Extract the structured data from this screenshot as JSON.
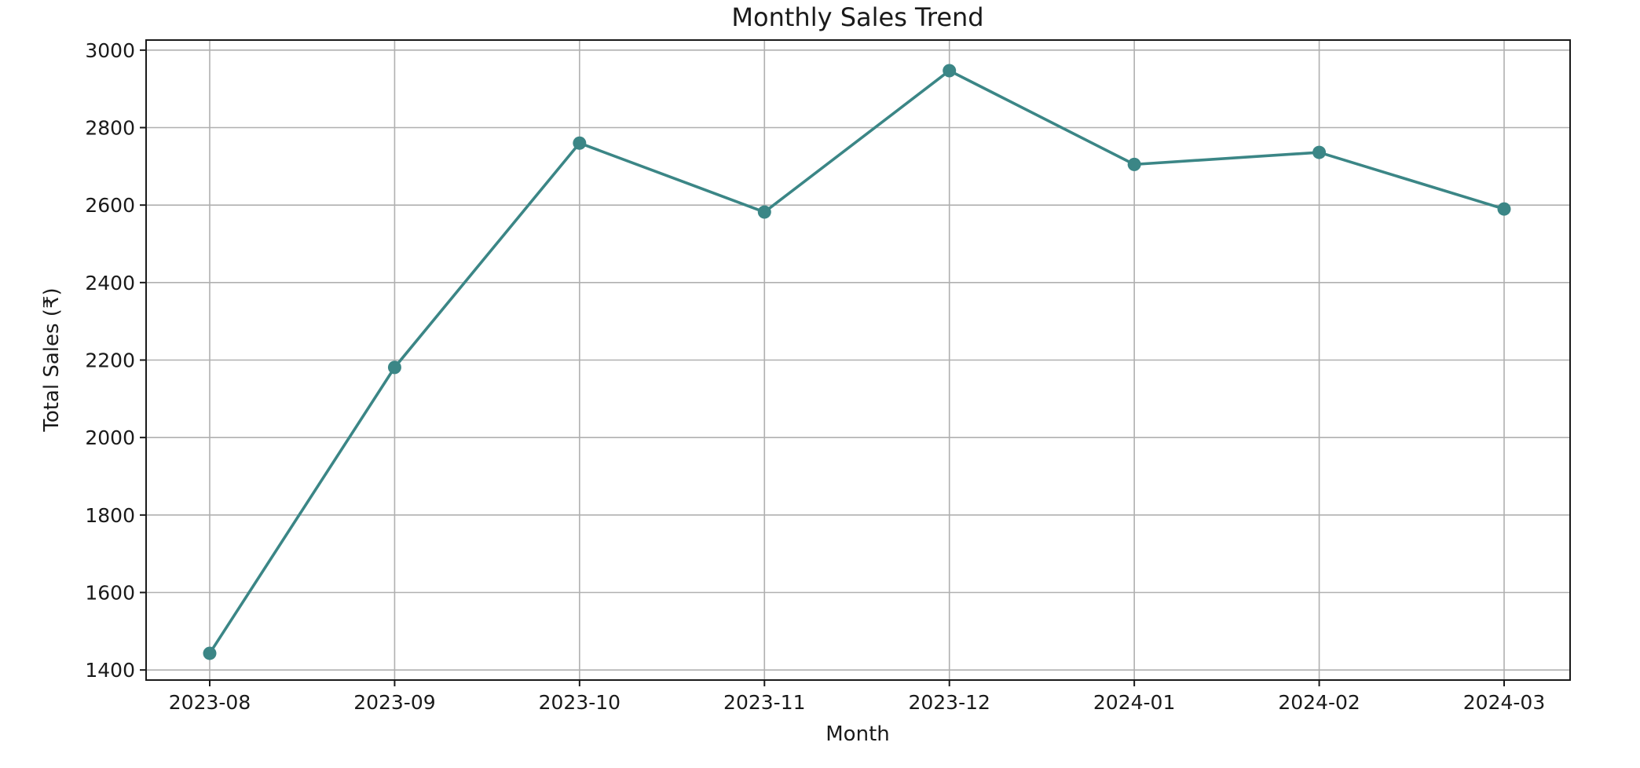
{
  "chart_data": {
    "type": "line",
    "title": "Monthly Sales Trend",
    "xlabel": "Month",
    "ylabel": "Total Sales (₹)",
    "categories": [
      "2023-08",
      "2023-09",
      "2023-10",
      "2023-11",
      "2023-12",
      "2024-01",
      "2024-02",
      "2024-03"
    ],
    "series": [
      {
        "values": [
          1443,
          2181,
          2760,
          2582,
          2947,
          2705,
          2736,
          2590
        ],
        "color": "#3b8686",
        "marker": "circle"
      }
    ],
    "ylim": [
      1374,
      3026
    ],
    "yticks": [
      1400,
      1600,
      1800,
      2000,
      2200,
      2400,
      2600,
      2800,
      3000
    ],
    "grid": true,
    "legend": "none"
  }
}
